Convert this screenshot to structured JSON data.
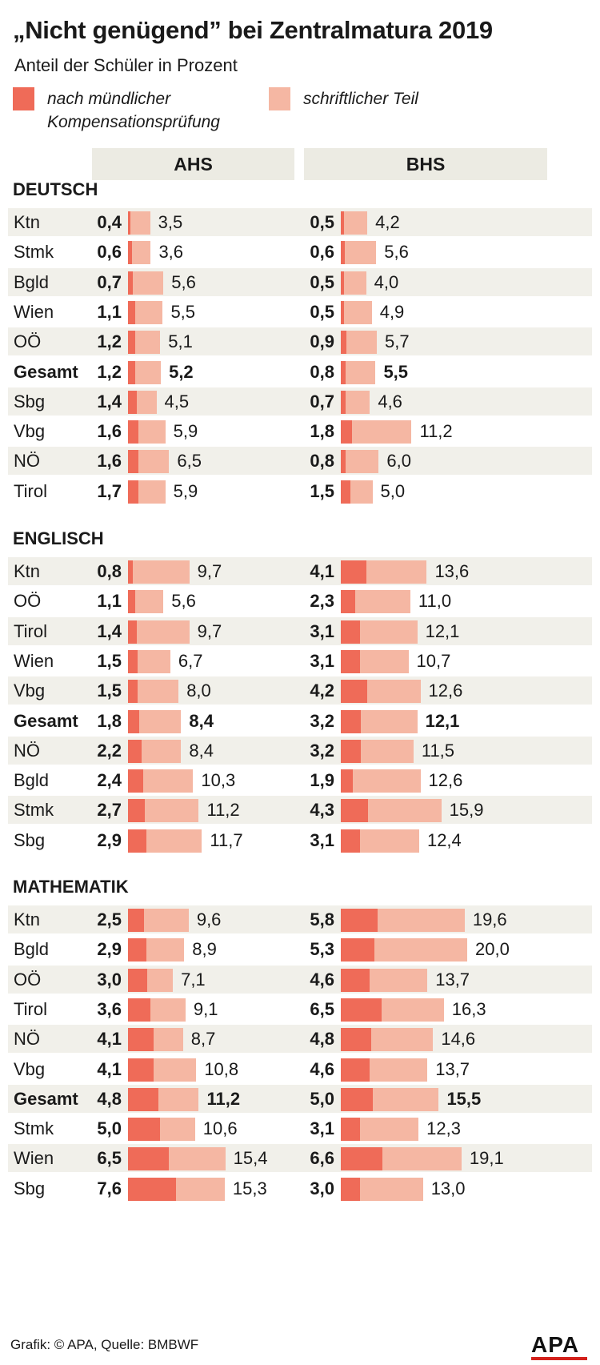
{
  "title": "„Nicht genügend” bei Zentralmatura 2019",
  "subtitle": "Anteil der Schüler in Prozent",
  "legend": {
    "dark_line1": "nach mündlicher",
    "dark_line2": "Kompensationsprüfung",
    "light": "schriftlicher Teil"
  },
  "columns": [
    "AHS",
    "BHS"
  ],
  "colors": {
    "dark": "#ef6b58",
    "light": "#f5b7a3",
    "header_bg": "#ecebe3",
    "stripe": "#f1f0ea",
    "logo_red": "#d3211b"
  },
  "footer": "Grafik: © APA, Quelle: BMBWF",
  "logo": "APA",
  "chart_data": {
    "type": "bar",
    "title": "„Nicht genügend” bei Zentralmatura 2019",
    "subtitle": "Anteil der Schüler in Prozent",
    "series_names": [
      "nach mündlicher Kompensationsprüfung",
      "schriftlicher Teil"
    ],
    "sections": [
      {
        "name": "DEUTSCH",
        "rows": [
          {
            "label": "Ktn",
            "ahs_oral": "0,4",
            "ahs_written": "3,5",
            "bhs_oral": "0,5",
            "bhs_written": "4,2"
          },
          {
            "label": "Stmk",
            "ahs_oral": "0,6",
            "ahs_written": "3,6",
            "bhs_oral": "0,6",
            "bhs_written": "5,6"
          },
          {
            "label": "Bgld",
            "ahs_oral": "0,7",
            "ahs_written": "5,6",
            "bhs_oral": "0,5",
            "bhs_written": "4,0"
          },
          {
            "label": "Wien",
            "ahs_oral": "1,1",
            "ahs_written": "5,5",
            "bhs_oral": "0,5",
            "bhs_written": "4,9"
          },
          {
            "label": "OÖ",
            "ahs_oral": "1,2",
            "ahs_written": "5,1",
            "bhs_oral": "0,9",
            "bhs_written": "5,7"
          },
          {
            "label": "Gesamt",
            "ahs_oral": "1,2",
            "ahs_written": "5,2",
            "bhs_oral": "0,8",
            "bhs_written": "5,5",
            "total": true
          },
          {
            "label": "Sbg",
            "ahs_oral": "1,4",
            "ahs_written": "4,5",
            "bhs_oral": "0,7",
            "bhs_written": "4,6"
          },
          {
            "label": "Vbg",
            "ahs_oral": "1,6",
            "ahs_written": "5,9",
            "bhs_oral": "1,8",
            "bhs_written": "11,2"
          },
          {
            "label": "NÖ",
            "ahs_oral": "1,6",
            "ahs_written": "6,5",
            "bhs_oral": "0,8",
            "bhs_written": "6,0"
          },
          {
            "label": "Tirol",
            "ahs_oral": "1,7",
            "ahs_written": "5,9",
            "bhs_oral": "1,5",
            "bhs_written": "5,0"
          }
        ]
      },
      {
        "name": "ENGLISCH",
        "rows": [
          {
            "label": "Ktn",
            "ahs_oral": "0,8",
            "ahs_written": "9,7",
            "bhs_oral": "4,1",
            "bhs_written": "13,6"
          },
          {
            "label": "OÖ",
            "ahs_oral": "1,1",
            "ahs_written": "5,6",
            "bhs_oral": "2,3",
            "bhs_written": "11,0"
          },
          {
            "label": "Tirol",
            "ahs_oral": "1,4",
            "ahs_written": "9,7",
            "bhs_oral": "3,1",
            "bhs_written": "12,1"
          },
          {
            "label": "Wien",
            "ahs_oral": "1,5",
            "ahs_written": "6,7",
            "bhs_oral": "3,1",
            "bhs_written": "10,7"
          },
          {
            "label": "Vbg",
            "ahs_oral": "1,5",
            "ahs_written": "8,0",
            "bhs_oral": "4,2",
            "bhs_written": "12,6"
          },
          {
            "label": "Gesamt",
            "ahs_oral": "1,8",
            "ahs_written": "8,4",
            "bhs_oral": "3,2",
            "bhs_written": "12,1",
            "total": true
          },
          {
            "label": "NÖ",
            "ahs_oral": "2,2",
            "ahs_written": "8,4",
            "bhs_oral": "3,2",
            "bhs_written": "11,5"
          },
          {
            "label": "Bgld",
            "ahs_oral": "2,4",
            "ahs_written": "10,3",
            "bhs_oral": "1,9",
            "bhs_written": "12,6"
          },
          {
            "label": "Stmk",
            "ahs_oral": "2,7",
            "ahs_written": "11,2",
            "bhs_oral": "4,3",
            "bhs_written": "15,9"
          },
          {
            "label": "Sbg",
            "ahs_oral": "2,9",
            "ahs_written": "11,7",
            "bhs_oral": "3,1",
            "bhs_written": "12,4"
          }
        ]
      },
      {
        "name": "MATHEMATIK",
        "rows": [
          {
            "label": "Ktn",
            "ahs_oral": "2,5",
            "ahs_written": "9,6",
            "bhs_oral": "5,8",
            "bhs_written": "19,6"
          },
          {
            "label": "Bgld",
            "ahs_oral": "2,9",
            "ahs_written": "8,9",
            "bhs_oral": "5,3",
            "bhs_written": "20,0"
          },
          {
            "label": "OÖ",
            "ahs_oral": "3,0",
            "ahs_written": "7,1",
            "bhs_oral": "4,6",
            "bhs_written": "13,7"
          },
          {
            "label": "Tirol",
            "ahs_oral": "3,6",
            "ahs_written": "9,1",
            "bhs_oral": "6,5",
            "bhs_written": "16,3"
          },
          {
            "label": "NÖ",
            "ahs_oral": "4,1",
            "ahs_written": "8,7",
            "bhs_oral": "4,8",
            "bhs_written": "14,6"
          },
          {
            "label": "Vbg",
            "ahs_oral": "4,1",
            "ahs_written": "10,8",
            "bhs_oral": "4,6",
            "bhs_written": "13,7"
          },
          {
            "label": "Gesamt",
            "ahs_oral": "4,8",
            "ahs_written": "11,2",
            "bhs_oral": "5,0",
            "bhs_written": "15,5",
            "total": true
          },
          {
            "label": "Stmk",
            "ahs_oral": "5,0",
            "ahs_written": "10,6",
            "bhs_oral": "3,1",
            "bhs_written": "12,3"
          },
          {
            "label": "Wien",
            "ahs_oral": "6,5",
            "ahs_written": "15,4",
            "bhs_oral": "6,6",
            "bhs_written": "19,1"
          },
          {
            "label": "Sbg",
            "ahs_oral": "7,6",
            "ahs_written": "15,3",
            "bhs_oral": "3,0",
            "bhs_written": "13,0"
          }
        ]
      }
    ]
  }
}
